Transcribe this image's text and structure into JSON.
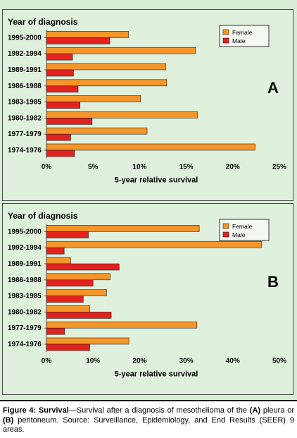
{
  "colors": {
    "female": "#f5962a",
    "male": "#e3211f",
    "panel_bg": "#dff0dc",
    "frame_bg": "#d8ecd6"
  },
  "chart_data": [
    {
      "type": "bar",
      "panel_label": "A",
      "title": "Year of diagnosis",
      "xlabel": "5-year relative survival",
      "ylabel": "Year of diagnosis",
      "categories": [
        "1995-2000",
        "1992-1994",
        "1989-1991",
        "1986-1988",
        "1983-1985",
        "1980-1982",
        "1977-1979",
        "1974-1976"
      ],
      "series": [
        {
          "name": "Female",
          "values": [
            8.8,
            16.0,
            12.8,
            12.9,
            10.1,
            16.2,
            10.8,
            22.4
          ]
        },
        {
          "name": "Male",
          "values": [
            6.8,
            2.8,
            2.9,
            3.4,
            3.6,
            4.9,
            2.6,
            3.0
          ]
        }
      ],
      "xlim": [
        0,
        25
      ],
      "xticks": [
        "0%",
        "5%",
        "10%",
        "15%",
        "20%",
        "25%"
      ],
      "legend": "top-right",
      "grid": false
    },
    {
      "type": "bar",
      "panel_label": "B",
      "title": "Year of diagnosis",
      "xlabel": "5-year relative survival",
      "ylabel": "Year of diagnosis",
      "categories": [
        "1995-2000",
        "1992-1994",
        "1989-1991",
        "1986-1988",
        "1983-1985",
        "1980-1982",
        "1977-1979",
        "1974-1976"
      ],
      "series": [
        {
          "name": "Female",
          "values": [
            32.8,
            46.2,
            5.2,
            13.7,
            12.9,
            9.3,
            32.3,
            17.7
          ]
        },
        {
          "name": "Male",
          "values": [
            9.0,
            3.8,
            15.6,
            10.0,
            7.9,
            13.9,
            3.9,
            9.3
          ]
        }
      ],
      "xlim": [
        0,
        50
      ],
      "xticks": [
        "0%",
        "10%",
        "20%",
        "30%",
        "40%",
        "50%"
      ],
      "legend": "top-right",
      "grid": false
    }
  ],
  "caption": {
    "label": "Figure 4: Survival",
    "text": "—Survival after a diagnosis of mesothelioma of the ",
    "a": "(A)",
    "mid": " pleura or ",
    "b": "(B)",
    "rest": " peritoneum. Source: Surveillance, Epidemiology, and End Results (SEER) 9 areas."
  }
}
